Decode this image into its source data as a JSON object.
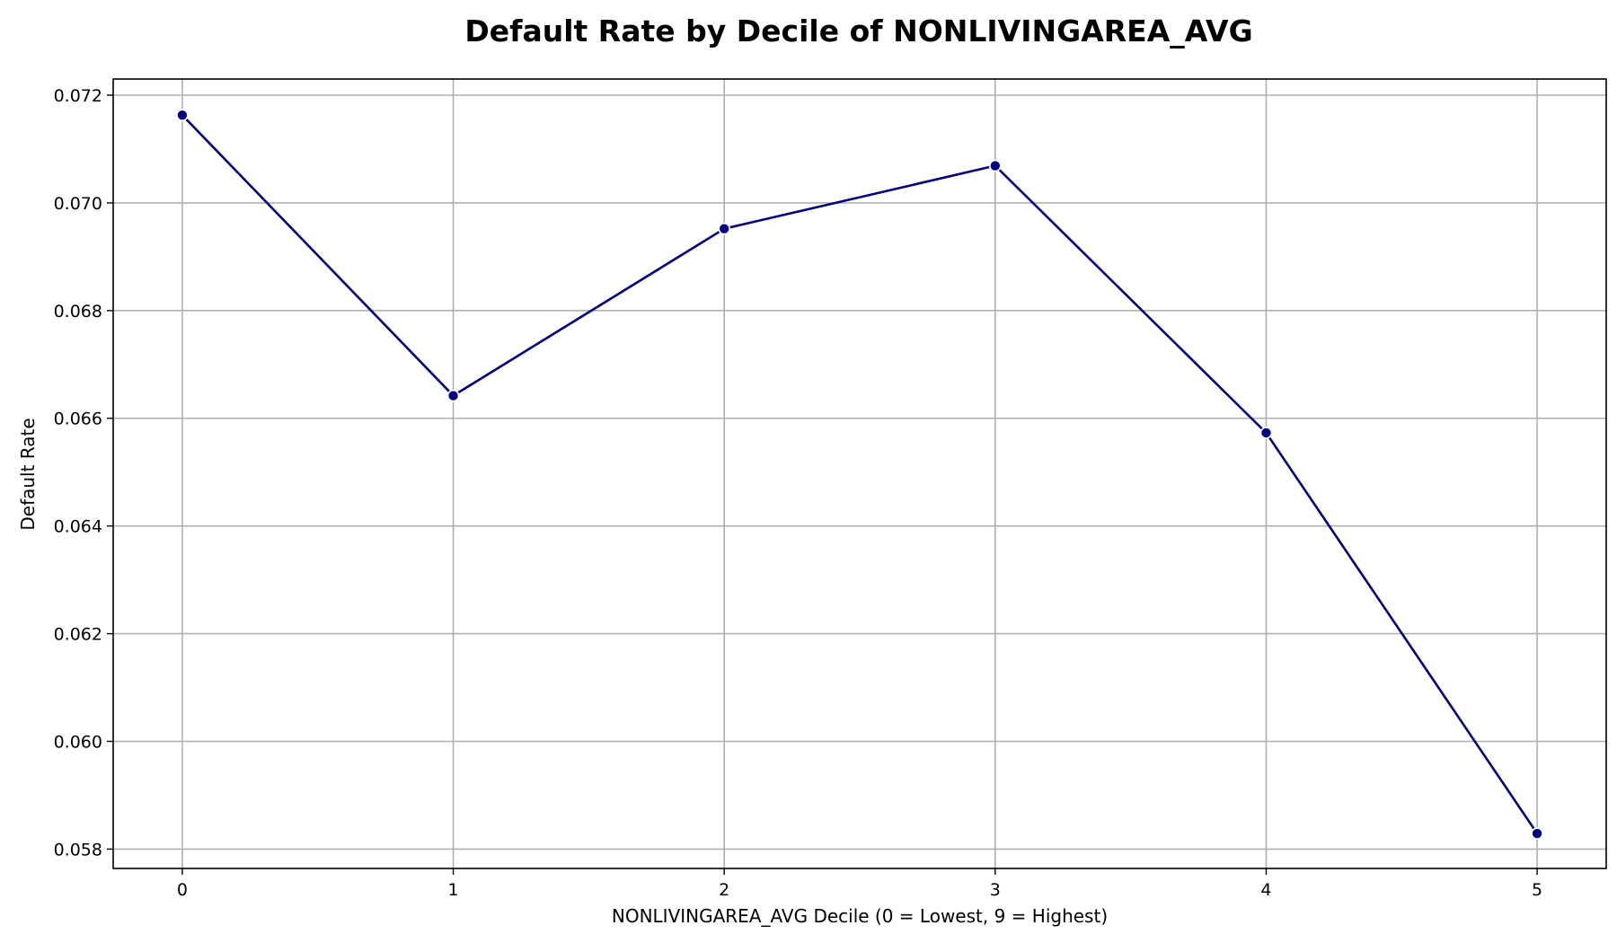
{
  "chart_data": {
    "type": "line",
    "title": "Default Rate by Decile of NONLIVINGAREA_AVG",
    "xlabel": "NONLIVINGAREA_AVG Decile (0 = Lowest, 9 = Highest)",
    "ylabel": "Default Rate",
    "x": [
      0,
      1,
      2,
      3,
      4,
      5
    ],
    "series": [
      {
        "values": [
          0.07163,
          0.06642,
          0.06952,
          0.07069,
          0.06573,
          0.05829
        ],
        "color": "#000080",
        "marker": "circle"
      }
    ],
    "xticks": [
      "0",
      "1",
      "2",
      "3",
      "4",
      "5"
    ],
    "yticks": [
      "0.058",
      "0.060",
      "0.062",
      "0.064",
      "0.066",
      "0.068",
      "0.070",
      "0.072"
    ],
    "xlim": [
      -0.255,
      5.255
    ],
    "ylim": [
      0.05764,
      0.0723
    ],
    "grid": true,
    "legend": "none"
  }
}
